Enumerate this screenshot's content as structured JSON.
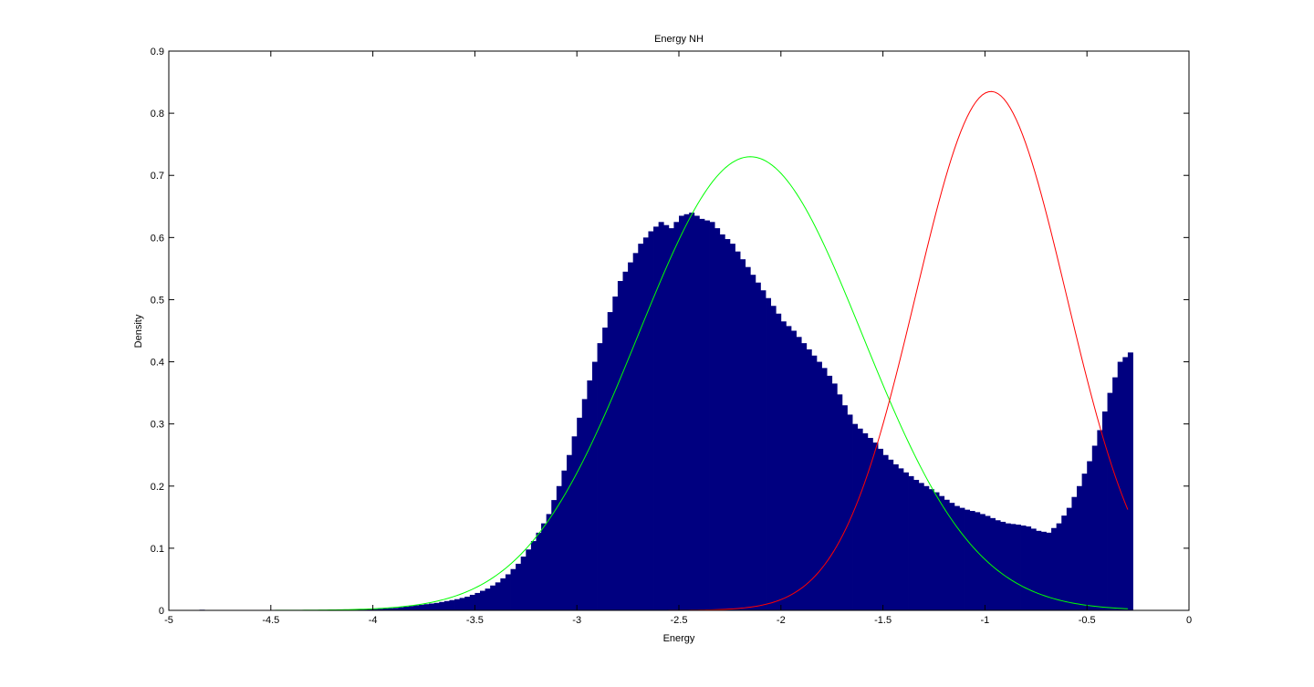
{
  "chart_data": {
    "type": "bar",
    "title": "Energy NH",
    "xlabel": "Energy",
    "ylabel": "Density",
    "xlim": [
      -5,
      0
    ],
    "ylim": [
      0,
      0.9
    ],
    "xticks": [
      -5,
      -4.5,
      -4,
      -3.5,
      -3,
      -2.5,
      -2,
      -1.5,
      -1,
      -0.5,
      0
    ],
    "xtick_labels": [
      "-5",
      "-4.5",
      "-4",
      "-3.5",
      "-3",
      "-2.5",
      "-2",
      "-1.5",
      "-1",
      "-0.5",
      "0"
    ],
    "yticks": [
      0,
      0.1,
      0.2,
      0.3,
      0.4,
      0.5,
      0.6,
      0.7,
      0.8,
      0.9
    ],
    "ytick_labels": [
      "0",
      "0.1",
      "0.2",
      "0.3",
      "0.4",
      "0.5",
      "0.6",
      "0.7",
      "0.8",
      "0.9"
    ],
    "grid": false,
    "legend": "none",
    "colors": {
      "bars": "#000080",
      "curve_1": "#00ff00",
      "curve_2": "#ff0000",
      "axes": "#000000"
    },
    "histogram": {
      "bin_width": 0.025,
      "bins": [
        {
          "x": -4.85,
          "y": 0.001
        },
        {
          "x": -4.15,
          "y": 0.001
        },
        {
          "x": -4.0,
          "y": 0.002
        },
        {
          "x": -3.95,
          "y": 0.003
        },
        {
          "x": -3.9,
          "y": 0.004
        },
        {
          "x": -3.85,
          "y": 0.006
        },
        {
          "x": -3.8,
          "y": 0.008
        },
        {
          "x": -3.75,
          "y": 0.01
        },
        {
          "x": -3.7,
          "y": 0.012
        },
        {
          "x": -3.65,
          "y": 0.015
        },
        {
          "x": -3.6,
          "y": 0.018
        },
        {
          "x": -3.55,
          "y": 0.022
        },
        {
          "x": -3.5,
          "y": 0.028
        },
        {
          "x": -3.45,
          "y": 0.035
        },
        {
          "x": -3.4,
          "y": 0.045
        },
        {
          "x": -3.35,
          "y": 0.058
        },
        {
          "x": -3.3,
          "y": 0.075
        },
        {
          "x": -3.25,
          "y": 0.098
        },
        {
          "x": -3.2,
          "y": 0.125
        },
        {
          "x": -3.15,
          "y": 0.155
        },
        {
          "x": -3.1,
          "y": 0.2
        },
        {
          "x": -3.05,
          "y": 0.25
        },
        {
          "x": -3.0,
          "y": 0.31
        },
        {
          "x": -2.95,
          "y": 0.37
        },
        {
          "x": -2.9,
          "y": 0.43
        },
        {
          "x": -2.85,
          "y": 0.48
        },
        {
          "x": -2.8,
          "y": 0.53
        },
        {
          "x": -2.75,
          "y": 0.56
        },
        {
          "x": -2.7,
          "y": 0.59
        },
        {
          "x": -2.65,
          "y": 0.61
        },
        {
          "x": -2.6,
          "y": 0.625
        },
        {
          "x": -2.55,
          "y": 0.615
        },
        {
          "x": -2.5,
          "y": 0.635
        },
        {
          "x": -2.45,
          "y": 0.64
        },
        {
          "x": -2.4,
          "y": 0.63
        },
        {
          "x": -2.35,
          "y": 0.625
        },
        {
          "x": -2.3,
          "y": 0.605
        },
        {
          "x": -2.25,
          "y": 0.59
        },
        {
          "x": -2.2,
          "y": 0.565
        },
        {
          "x": -2.15,
          "y": 0.54
        },
        {
          "x": -2.1,
          "y": 0.515
        },
        {
          "x": -2.05,
          "y": 0.49
        },
        {
          "x": -2.0,
          "y": 0.465
        },
        {
          "x": -1.95,
          "y": 0.45
        },
        {
          "x": -1.9,
          "y": 0.43
        },
        {
          "x": -1.85,
          "y": 0.41
        },
        {
          "x": -1.8,
          "y": 0.39
        },
        {
          "x": -1.75,
          "y": 0.365
        },
        {
          "x": -1.7,
          "y": 0.33
        },
        {
          "x": -1.65,
          "y": 0.3
        },
        {
          "x": -1.6,
          "y": 0.285
        },
        {
          "x": -1.55,
          "y": 0.27
        },
        {
          "x": -1.5,
          "y": 0.25
        },
        {
          "x": -1.45,
          "y": 0.235
        },
        {
          "x": -1.4,
          "y": 0.222
        },
        {
          "x": -1.35,
          "y": 0.21
        },
        {
          "x": -1.3,
          "y": 0.2
        },
        {
          "x": -1.25,
          "y": 0.19
        },
        {
          "x": -1.2,
          "y": 0.178
        },
        {
          "x": -1.15,
          "y": 0.168
        },
        {
          "x": -1.1,
          "y": 0.162
        },
        {
          "x": -1.05,
          "y": 0.158
        },
        {
          "x": -1.0,
          "y": 0.152
        },
        {
          "x": -0.95,
          "y": 0.145
        },
        {
          "x": -0.9,
          "y": 0.14
        },
        {
          "x": -0.85,
          "y": 0.138
        },
        {
          "x": -0.8,
          "y": 0.135
        },
        {
          "x": -0.75,
          "y": 0.128
        },
        {
          "x": -0.7,
          "y": 0.125
        },
        {
          "x": -0.65,
          "y": 0.14
        },
        {
          "x": -0.6,
          "y": 0.165
        },
        {
          "x": -0.55,
          "y": 0.2
        },
        {
          "x": -0.5,
          "y": 0.24
        },
        {
          "x": -0.45,
          "y": 0.29
        },
        {
          "x": -0.4,
          "y": 0.35
        },
        {
          "x": -0.35,
          "y": 0.4
        },
        {
          "x": -0.3,
          "y": 0.415
        }
      ]
    },
    "series": [
      {
        "type": "line",
        "color": "#00ff00",
        "mean": -2.15,
        "sd": 0.55,
        "peak": 0.73,
        "x_range": [
          -4.85,
          -0.3
        ]
      },
      {
        "type": "line",
        "color": "#ff0000",
        "mean": -0.97,
        "sd": 0.37,
        "peak": 0.835,
        "x_range": [
          -4.85,
          -0.3
        ]
      }
    ]
  }
}
